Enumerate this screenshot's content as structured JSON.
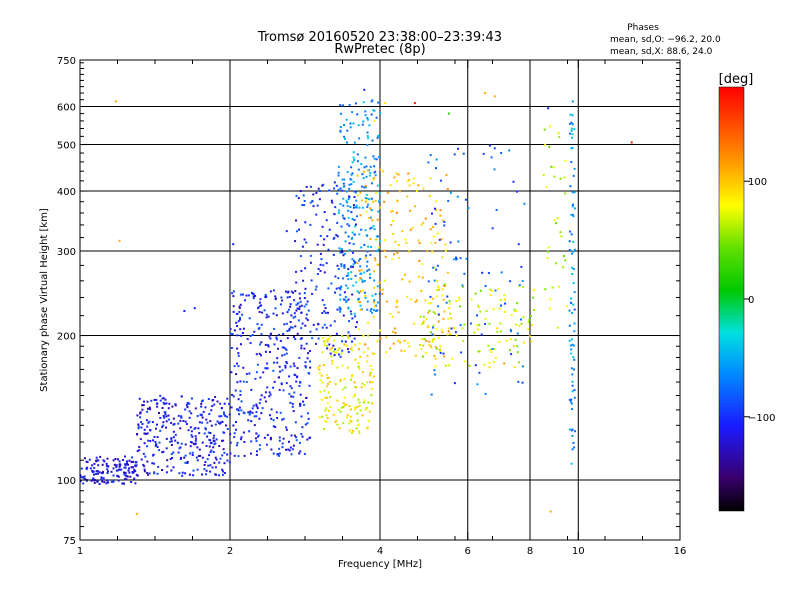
{
  "chart_data": {
    "type": "scatter",
    "title": "Tromsø 20160520 23:38:00–23:39:43",
    "subtitle": "RwPretec (8p)",
    "stats_header": "Phases",
    "stats_o": "mean, sd,O: −96.2, 20.0",
    "stats_x": "mean, sd,X: 88.6, 24.0",
    "xlabel": "Frequency [MHz]",
    "ylabel": "Stationary phase Virtual Height [km]",
    "x_scale": "log",
    "y_scale": "log",
    "xlim": [
      1,
      16
    ],
    "ylim": [
      75,
      750
    ],
    "x_ticks": [
      1,
      2,
      4,
      6,
      8,
      10,
      16
    ],
    "x_tick_labels": [
      "1",
      "2",
      "4",
      "6",
      "8",
      "10",
      "16"
    ],
    "x_gridlines": [
      2,
      4,
      6,
      8,
      10
    ],
    "y_ticks": [
      75,
      100,
      200,
      300,
      400,
      500,
      600,
      750
    ],
    "y_tick_labels": [
      "75",
      "100",
      "200",
      "300",
      "400",
      "500",
      "600",
      "750"
    ],
    "y_gridlines": [
      100,
      200,
      300,
      400,
      500,
      600
    ],
    "grid": true,
    "colorbar": {
      "label": "[deg]",
      "range": [
        -180,
        180
      ],
      "ticks": [
        100,
        0,
        -100
      ],
      "tick_labels": [
        "100",
        "0",
        "−100"
      ]
    },
    "point_groups": [
      {
        "x_range": [
          1.0,
          1.3
        ],
        "y_range": [
          98,
          112
        ],
        "phase": -115,
        "count": 150
      },
      {
        "x_range": [
          1.3,
          2.0
        ],
        "y_range": [
          102,
          150
        ],
        "phase": -110,
        "count": 320
      },
      {
        "x_range": [
          2.0,
          2.9
        ],
        "y_range": [
          112,
          250
        ],
        "phase": -105,
        "count": 380
      },
      {
        "x_range": [
          2.7,
          3.6
        ],
        "y_range": [
          180,
          420
        ],
        "phase": -100,
        "count": 180
      },
      {
        "x_range": [
          3.0,
          3.9
        ],
        "y_range": [
          125,
          200
        ],
        "phase": 80,
        "count": 160
      },
      {
        "x_range": [
          3.3,
          4.0
        ],
        "y_range": [
          220,
          620
        ],
        "phase": -60,
        "count": 240
      },
      {
        "x_range": [
          3.6,
          5.5
        ],
        "y_range": [
          180,
          450
        ],
        "phase": 100,
        "count": 200
      },
      {
        "x_range": [
          4.8,
          8.2
        ],
        "y_range": [
          170,
          260
        ],
        "phase": 70,
        "count": 130
      },
      {
        "x_range": [
          5.0,
          7.8
        ],
        "y_range": [
          150,
          500
        ],
        "phase": -80,
        "count": 90
      },
      {
        "x_range": [
          9.6,
          9.85
        ],
        "y_range": [
          105,
          600
        ],
        "phase": -60,
        "count": 80
      },
      {
        "x_range": [
          8.5,
          9.5
        ],
        "y_range": [
          200,
          560
        ],
        "phase": 60,
        "count": 35
      }
    ],
    "points": [
      {
        "x": 1.18,
        "y": 615,
        "phase": 110
      },
      {
        "x": 1.2,
        "y": 315,
        "phase": 110
      },
      {
        "x": 1.3,
        "y": 85,
        "phase": 110
      },
      {
        "x": 1.62,
        "y": 225,
        "phase": -105
      },
      {
        "x": 1.7,
        "y": 228,
        "phase": -105
      },
      {
        "x": 2.03,
        "y": 310,
        "phase": -110
      },
      {
        "x": 2.6,
        "y": 330,
        "phase": -100
      },
      {
        "x": 2.9,
        "y": 340,
        "phase": -90
      },
      {
        "x": 3.72,
        "y": 650,
        "phase": -110
      },
      {
        "x": 3.9,
        "y": 560,
        "phase": 80
      },
      {
        "x": 4.1,
        "y": 610,
        "phase": 90
      },
      {
        "x": 4.7,
        "y": 610,
        "phase": 170
      },
      {
        "x": 5.5,
        "y": 580,
        "phase": 20
      },
      {
        "x": 6.5,
        "y": 640,
        "phase": 110
      },
      {
        "x": 6.8,
        "y": 630,
        "phase": 110
      },
      {
        "x": 8.7,
        "y": 595,
        "phase": -110
      },
      {
        "x": 9.75,
        "y": 615,
        "phase": -60
      },
      {
        "x": 8.8,
        "y": 86,
        "phase": 110
      },
      {
        "x": 12.8,
        "y": 505,
        "phase": 170
      },
      {
        "x": 7.0,
        "y": 480,
        "phase": -80
      },
      {
        "x": 6.7,
        "y": 470,
        "phase": -80
      },
      {
        "x": 7.1,
        "y": 175,
        "phase": 120
      }
    ]
  }
}
